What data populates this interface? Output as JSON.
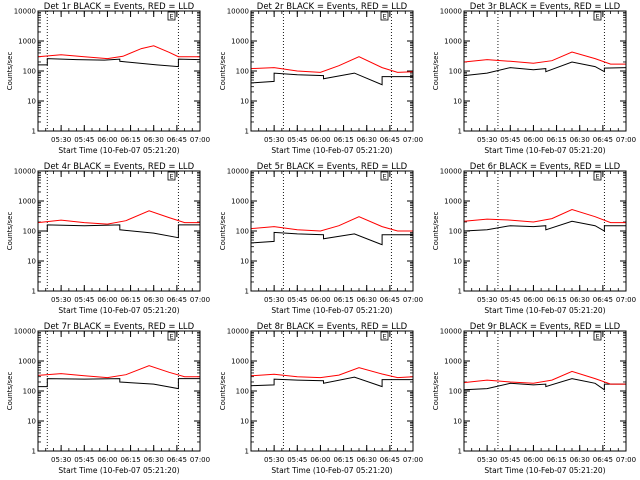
{
  "chart_data": [
    {
      "type": "line",
      "title": "Det 1r BLACK = Events, RED = LLD",
      "xlabel": "Start Time (10-Feb-07 05:21:20)",
      "ylabel": "Counts/sec",
      "y_scale": "log",
      "ylim": [
        1,
        10000
      ],
      "xlim": [
        "05:15",
        "07:00"
      ],
      "x_ticks": [
        "05:30",
        "05:45",
        "06:00",
        "06:15",
        "06:30",
        "06:45",
        "07:00"
      ],
      "y_ticks": [
        "1",
        "10",
        "100",
        "1000",
        "10000"
      ],
      "vlines": [
        "05:21",
        "06:46"
      ],
      "flag_box": "E",
      "series": [
        {
          "name": "Events",
          "color": "#000000",
          "x": [
            "05:15",
            "05:21",
            "05:21",
            "05:40",
            "05:58",
            "06:08",
            "06:08",
            "06:32",
            "06:46",
            "06:46",
            "07:00"
          ],
          "y": [
            160,
            160,
            260,
            240,
            230,
            250,
            210,
            160,
            140,
            250,
            240
          ]
        },
        {
          "name": "LLD",
          "color": "#ff0000",
          "x": [
            "05:15",
            "05:30",
            "05:45",
            "06:00",
            "06:10",
            "06:22",
            "06:30",
            "06:40",
            "06:46",
            "07:00"
          ],
          "y": [
            300,
            350,
            300,
            260,
            310,
            560,
            690,
            420,
            300,
            300
          ]
        }
      ]
    },
    {
      "type": "line",
      "title": "Det 2r BLACK = Events, RED = LLD",
      "xlabel": "Start Time (10-Feb-07 05:21:20)",
      "ylabel": "Counts/sec",
      "y_scale": "log",
      "ylim": [
        1,
        10000
      ],
      "xlim": [
        "05:15",
        "07:00"
      ],
      "x_ticks": [
        "05:30",
        "05:45",
        "06:00",
        "06:15",
        "06:30",
        "06:45",
        "07:00"
      ],
      "y_ticks": [
        "1",
        "10",
        "100",
        "1000",
        "10000"
      ],
      "vlines": [
        "05:36",
        "06:46"
      ],
      "flag_box": "E",
      "series": [
        {
          "name": "Events",
          "color": "#000000",
          "x": [
            "05:15",
            "05:30",
            "05:30",
            "05:45",
            "06:02",
            "06:02",
            "06:22",
            "06:40",
            "06:40",
            "07:00"
          ],
          "y": [
            40,
            45,
            85,
            75,
            70,
            55,
            85,
            35,
            65,
            65
          ]
        },
        {
          "name": "LLD",
          "color": "#ff0000",
          "x": [
            "05:15",
            "05:30",
            "05:45",
            "06:00",
            "06:12",
            "06:25",
            "06:40",
            "06:50",
            "07:00"
          ],
          "y": [
            120,
            130,
            100,
            90,
            150,
            300,
            130,
            90,
            95
          ]
        }
      ]
    },
    {
      "type": "line",
      "title": "Det 3r BLACK = Events, RED = LLD",
      "xlabel": "Start Time (10-Feb-07 05:21:20)",
      "ylabel": "Counts/sec",
      "y_scale": "log",
      "ylim": [
        1,
        10000
      ],
      "xlim": [
        "05:15",
        "07:00"
      ],
      "x_ticks": [
        "05:30",
        "05:45",
        "06:00",
        "06:15",
        "06:30",
        "06:45",
        "07:00"
      ],
      "y_ticks": [
        "1",
        "10",
        "100",
        "1000",
        "10000"
      ],
      "vlines": [
        "05:37",
        "06:46"
      ],
      "flag_box": "E",
      "series": [
        {
          "name": "Events",
          "color": "#000000",
          "x": [
            "05:15",
            "05:30",
            "05:45",
            "06:00",
            "06:08",
            "06:08",
            "06:25",
            "06:40",
            "06:46",
            "06:46",
            "07:00"
          ],
          "y": [
            70,
            85,
            130,
            110,
            120,
            95,
            200,
            140,
            95,
            125,
            130
          ]
        },
        {
          "name": "LLD",
          "color": "#ff0000",
          "x": [
            "05:15",
            "05:30",
            "05:45",
            "06:00",
            "06:12",
            "06:25",
            "06:40",
            "06:50",
            "07:00"
          ],
          "y": [
            200,
            240,
            210,
            180,
            220,
            430,
            260,
            170,
            170
          ]
        }
      ]
    },
    {
      "type": "line",
      "title": "Det 4r BLACK = Events, RED = LLD",
      "xlabel": "Start Time (10-Feb-07 05:21:20)",
      "ylabel": "Counts/sec",
      "y_scale": "log",
      "ylim": [
        1,
        10000
      ],
      "xlim": [
        "05:15",
        "07:00"
      ],
      "x_ticks": [
        "05:30",
        "05:45",
        "06:00",
        "06:15",
        "06:30",
        "06:45",
        "07:00"
      ],
      "y_ticks": [
        "1",
        "10",
        "100",
        "1000",
        "10000"
      ],
      "vlines": [
        "05:21",
        "06:46"
      ],
      "flag_box": "E",
      "series": [
        {
          "name": "Events",
          "color": "#000000",
          "x": [
            "05:15",
            "05:21",
            "05:21",
            "05:45",
            "06:08",
            "06:08",
            "06:30",
            "06:46",
            "06:46",
            "07:00"
          ],
          "y": [
            100,
            100,
            160,
            150,
            160,
            110,
            85,
            60,
            160,
            160
          ]
        },
        {
          "name": "LLD",
          "color": "#ff0000",
          "x": [
            "05:15",
            "05:30",
            "05:45",
            "06:00",
            "06:12",
            "06:27",
            "06:40",
            "06:50",
            "07:00"
          ],
          "y": [
            190,
            230,
            190,
            170,
            220,
            470,
            280,
            190,
            190
          ]
        }
      ]
    },
    {
      "type": "line",
      "title": "Det 5r BLACK = Events, RED = LLD",
      "xlabel": "Start Time (10-Feb-07 05:21:20)",
      "ylabel": "Counts/sec",
      "y_scale": "log",
      "ylim": [
        1,
        10000
      ],
      "xlim": [
        "05:15",
        "07:00"
      ],
      "x_ticks": [
        "05:30",
        "05:45",
        "06:00",
        "06:15",
        "06:30",
        "06:45",
        "07:00"
      ],
      "y_ticks": [
        "1",
        "10",
        "100",
        "1000",
        "10000"
      ],
      "vlines": [
        "05:36",
        "06:46"
      ],
      "flag_box": "E",
      "series": [
        {
          "name": "Events",
          "color": "#000000",
          "x": [
            "05:15",
            "05:30",
            "05:30",
            "05:45",
            "06:02",
            "06:02",
            "06:22",
            "06:40",
            "06:40",
            "07:00"
          ],
          "y": [
            40,
            45,
            90,
            80,
            75,
            55,
            80,
            35,
            75,
            75
          ]
        },
        {
          "name": "LLD",
          "color": "#ff0000",
          "x": [
            "05:15",
            "05:30",
            "05:45",
            "06:00",
            "06:12",
            "06:25",
            "06:40",
            "06:50",
            "07:00"
          ],
          "y": [
            120,
            140,
            110,
            100,
            150,
            300,
            140,
            100,
            100
          ]
        }
      ]
    },
    {
      "type": "line",
      "title": "Det 6r BLACK = Events, RED = LLD",
      "xlabel": "Start Time (10-Feb-07 05:21:20)",
      "ylabel": "Counts/sec",
      "y_scale": "log",
      "ylim": [
        1,
        10000
      ],
      "xlim": [
        "05:15",
        "07:00"
      ],
      "x_ticks": [
        "05:30",
        "05:45",
        "06:00",
        "06:15",
        "06:30",
        "06:45",
        "07:00"
      ],
      "y_ticks": [
        "1",
        "10",
        "100",
        "1000",
        "10000"
      ],
      "vlines": [
        "05:37",
        "06:46"
      ],
      "flag_box": "E",
      "series": [
        {
          "name": "Events",
          "color": "#000000",
          "x": [
            "05:15",
            "05:30",
            "05:45",
            "06:00",
            "06:08",
            "06:08",
            "06:25",
            "06:40",
            "06:46",
            "06:46",
            "07:00"
          ],
          "y": [
            100,
            110,
            150,
            140,
            150,
            110,
            210,
            150,
            100,
            150,
            150
          ]
        },
        {
          "name": "LLD",
          "color": "#ff0000",
          "x": [
            "05:15",
            "05:30",
            "05:45",
            "06:00",
            "06:12",
            "06:25",
            "06:40",
            "06:50",
            "07:00"
          ],
          "y": [
            210,
            250,
            230,
            200,
            260,
            520,
            300,
            190,
            190
          ]
        }
      ]
    },
    {
      "type": "line",
      "title": "Det 7r BLACK = Events, RED = LLD",
      "xlabel": "Start Time (10-Feb-07 05:21:20)",
      "ylabel": "Counts/sec",
      "y_scale": "log",
      "ylim": [
        1,
        10000
      ],
      "xlim": [
        "05:15",
        "07:00"
      ],
      "x_ticks": [
        "05:30",
        "05:45",
        "06:00",
        "06:15",
        "06:30",
        "06:45",
        "07:00"
      ],
      "y_ticks": [
        "1",
        "10",
        "100",
        "1000",
        "10000"
      ],
      "vlines": [
        "05:21",
        "06:46"
      ],
      "flag_box": "E",
      "series": [
        {
          "name": "Events",
          "color": "#000000",
          "x": [
            "05:15",
            "05:21",
            "05:21",
            "05:45",
            "06:08",
            "06:08",
            "06:30",
            "06:46",
            "06:46",
            "07:00"
          ],
          "y": [
            140,
            140,
            260,
            250,
            260,
            200,
            170,
            120,
            260,
            260
          ]
        },
        {
          "name": "LLD",
          "color": "#ff0000",
          "x": [
            "05:15",
            "05:30",
            "05:45",
            "06:00",
            "06:12",
            "06:27",
            "06:40",
            "06:50",
            "07:00"
          ],
          "y": [
            330,
            380,
            320,
            280,
            350,
            700,
            420,
            300,
            300
          ]
        }
      ]
    },
    {
      "type": "line",
      "title": "Det 8r BLACK = Events, RED = LLD",
      "xlabel": "Start Time (10-Feb-07 05:21:20)",
      "ylabel": "Counts/sec",
      "y_scale": "log",
      "ylim": [
        1,
        10000
      ],
      "xlim": [
        "05:15",
        "07:00"
      ],
      "x_ticks": [
        "05:30",
        "05:45",
        "06:00",
        "06:15",
        "06:30",
        "06:45",
        "07:00"
      ],
      "y_ticks": [
        "1",
        "10",
        "100",
        "1000",
        "10000"
      ],
      "vlines": [
        "05:36",
        "06:46"
      ],
      "flag_box": "E",
      "series": [
        {
          "name": "Events",
          "color": "#000000",
          "x": [
            "05:15",
            "05:30",
            "05:30",
            "05:45",
            "06:02",
            "06:02",
            "06:22",
            "06:40",
            "06:40",
            "07:00"
          ],
          "y": [
            150,
            160,
            250,
            230,
            220,
            180,
            290,
            140,
            240,
            240
          ]
        },
        {
          "name": "LLD",
          "color": "#ff0000",
          "x": [
            "05:15",
            "05:30",
            "05:45",
            "06:00",
            "06:12",
            "06:25",
            "06:40",
            "06:50",
            "07:00"
          ],
          "y": [
            320,
            360,
            300,
            280,
            340,
            600,
            370,
            280,
            300
          ]
        }
      ]
    },
    {
      "type": "line",
      "title": "Det 9r BLACK = Events, RED = LLD",
      "xlabel": "Start Time (10-Feb-07 05:21:20)",
      "ylabel": "Counts/sec",
      "y_scale": "log",
      "ylim": [
        1,
        10000
      ],
      "xlim": [
        "05:15",
        "07:00"
      ],
      "x_ticks": [
        "05:30",
        "05:45",
        "06:00",
        "06:15",
        "06:30",
        "06:45",
        "07:00"
      ],
      "y_ticks": [
        "1",
        "10",
        "100",
        "1000",
        "10000"
      ],
      "vlines": [
        "05:37",
        "06:46"
      ],
      "flag_box": "E",
      "series": [
        {
          "name": "Events",
          "color": "#000000",
          "x": [
            "05:15",
            "05:30",
            "05:45",
            "06:00",
            "06:08",
            "06:08",
            "06:25",
            "06:40",
            "06:46",
            "06:46",
            "07:00"
          ],
          "y": [
            110,
            120,
            180,
            160,
            170,
            140,
            260,
            180,
            110,
            170,
            170
          ]
        },
        {
          "name": "LLD",
          "color": "#ff0000",
          "x": [
            "05:15",
            "05:30",
            "05:45",
            "06:00",
            "06:12",
            "06:25",
            "06:40",
            "06:50",
            "07:00"
          ],
          "y": [
            190,
            230,
            200,
            180,
            230,
            450,
            260,
            170,
            170
          ]
        }
      ]
    }
  ]
}
